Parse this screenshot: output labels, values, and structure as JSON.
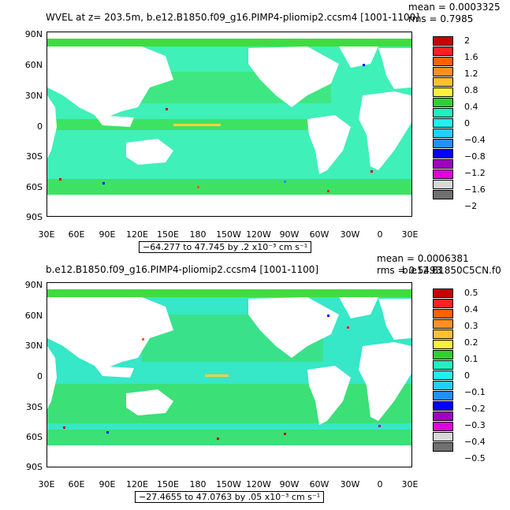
{
  "panels": [
    {
      "title": "WVEL at z= 203.5m, b.e12.B1850.f09_g16.PIMP4-pliomip2.ccsm4 [1001-1100]",
      "mean_text": "mean = 0.0003325",
      "rms_text": "rms = 0.7985",
      "range_text": "−64.277 to 47.745 by .2 x10⁻³ cm s⁻¹",
      "colorbar_labels": [
        "2",
        "1.6",
        "1.2",
        "0.8",
        "0.4",
        "0",
        "−0.4",
        "−0.8",
        "−1.2",
        "−1.6",
        "−2"
      ]
    },
    {
      "title": "b.e12.B1850.f09_g16.PIMP4-pliomip2.ccsm4 [1001-1100]",
      "mean_text": "mean = 0.0006381",
      "rms_text": "rms = 0.5493",
      "subtitle_right": "b.e12.B1850C5CN.f0",
      "range_text": "−27.4655 to 47.0763 by .05 x10⁻³ cm s⁻¹",
      "colorbar_labels": [
        "0.5",
        "0.4",
        "0.3",
        "0.2",
        "0.1",
        "0",
        "−0.1",
        "−0.2",
        "−0.3",
        "−0.4",
        "−0.5"
      ]
    }
  ],
  "lat_labels": [
    "90N",
    "60N",
    "30N",
    "0",
    "30S",
    "60S",
    "90S"
  ],
  "lon_labels": [
    "30E",
    "60E",
    "90E",
    "120E",
    "150E",
    "180",
    "150W",
    "120W",
    "90W",
    "60W",
    "30W",
    "0",
    "30E"
  ],
  "colors": {
    "ocean": "#3ff0b8",
    "ocean_alt": "#36e7c8",
    "positive": "#3fdc3f",
    "equator_band": "#ffd040",
    "land": "#ffffff",
    "colorbar": [
      "#c80000",
      "#ff2020",
      "#ff6000",
      "#ff9020",
      "#ffc030",
      "#fff040",
      "#30d030",
      "#20f0c0",
      "#20f0f0",
      "#20d0ff",
      "#2090ff",
      "#0000ff",
      "#a000c0",
      "#e000e0",
      "#d8d8d8",
      "#707070"
    ]
  }
}
